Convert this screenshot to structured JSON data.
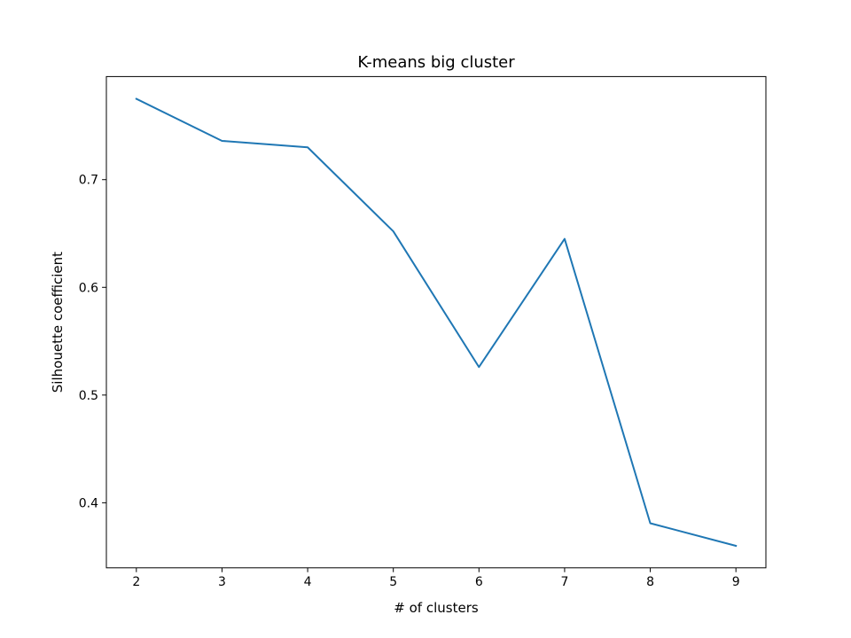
{
  "chart_data": {
    "type": "line",
    "title": "K-means big cluster",
    "xlabel": "# of clusters",
    "ylabel": "Silhouette coefficient",
    "x": [
      2,
      3,
      4,
      5,
      6,
      7,
      8,
      9
    ],
    "series": [
      {
        "values": [
          0.775,
          0.736,
          0.73,
          0.652,
          0.526,
          0.645,
          0.381,
          0.36
        ],
        "color": "#1f77b4"
      }
    ],
    "xticks": [
      "2",
      "3",
      "4",
      "5",
      "6",
      "7",
      "8",
      "9"
    ],
    "yticks": [
      "0.4",
      "0.5",
      "0.6",
      "0.7"
    ],
    "xlim": [
      1.65,
      9.35
    ],
    "ylim": [
      0.3396,
      0.7957
    ],
    "grid": false,
    "legend": "none"
  }
}
